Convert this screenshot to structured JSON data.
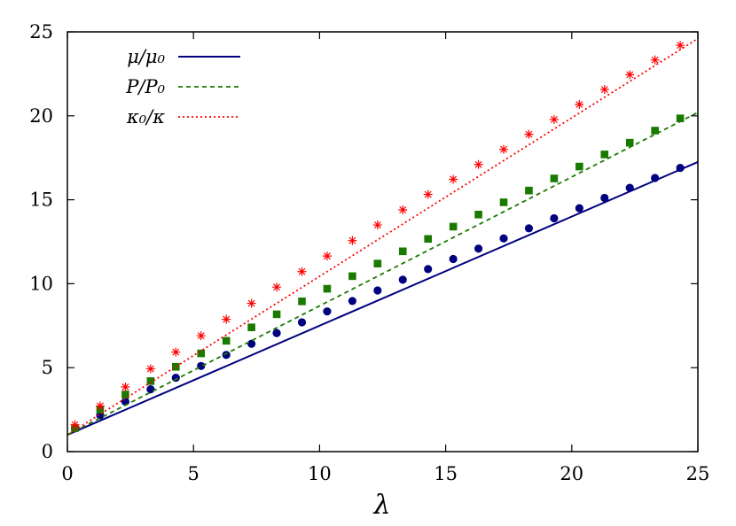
{
  "chart_data": {
    "type": "line",
    "xlabel": "λ",
    "ylabel": "",
    "xlim": [
      0,
      25
    ],
    "ylim": [
      0,
      25
    ],
    "xticks": [
      0,
      5,
      10,
      15,
      20,
      25
    ],
    "yticks": [
      0,
      5,
      10,
      15,
      20,
      25
    ],
    "grid": false,
    "legend_position": "top-left",
    "series": [
      {
        "name": "μ/μ₀",
        "color": "#000080",
        "line_style": "solid",
        "marker": "circle",
        "line": [
          [
            0,
            1.0
          ],
          [
            25,
            17.25
          ]
        ],
        "points": [
          [
            0.3,
            1.39
          ],
          [
            1.3,
            2.16
          ],
          [
            2.3,
            2.98
          ],
          [
            3.3,
            3.71
          ],
          [
            4.3,
            4.4
          ],
          [
            5.3,
            5.1
          ],
          [
            6.3,
            5.76
          ],
          [
            7.3,
            6.42
          ],
          [
            8.3,
            7.06
          ],
          [
            9.3,
            7.7
          ],
          [
            10.3,
            8.35
          ],
          [
            11.3,
            8.97
          ],
          [
            12.3,
            9.6
          ],
          [
            13.3,
            10.24
          ],
          [
            14.3,
            10.87
          ],
          [
            15.3,
            11.47
          ],
          [
            16.3,
            12.09
          ],
          [
            17.3,
            12.7
          ],
          [
            18.3,
            13.3
          ],
          [
            19.3,
            13.9
          ],
          [
            20.3,
            14.5
          ],
          [
            21.3,
            15.11
          ],
          [
            22.3,
            15.71
          ],
          [
            23.3,
            16.3
          ],
          [
            24.3,
            16.9
          ]
        ]
      },
      {
        "name": "P/P₀",
        "color": "#1a7a00",
        "line_style": "dashed",
        "marker": "square",
        "line": [
          [
            0,
            1.0
          ],
          [
            25,
            20.2
          ]
        ],
        "points": [
          [
            0.3,
            1.4
          ],
          [
            1.3,
            2.5
          ],
          [
            2.3,
            3.4
          ],
          [
            3.3,
            4.2
          ],
          [
            4.3,
            5.05
          ],
          [
            5.3,
            5.85
          ],
          [
            6.3,
            6.6
          ],
          [
            7.3,
            7.4
          ],
          [
            8.3,
            8.18
          ],
          [
            9.3,
            8.95
          ],
          [
            10.3,
            9.7
          ],
          [
            11.3,
            10.45
          ],
          [
            12.3,
            11.2
          ],
          [
            13.3,
            11.93
          ],
          [
            14.3,
            12.67
          ],
          [
            15.3,
            13.4
          ],
          [
            16.3,
            14.12
          ],
          [
            17.3,
            14.85
          ],
          [
            18.3,
            15.55
          ],
          [
            19.3,
            16.27
          ],
          [
            20.3,
            16.98
          ],
          [
            21.3,
            17.7
          ],
          [
            22.3,
            18.4
          ],
          [
            23.3,
            19.12
          ],
          [
            24.3,
            19.85
          ]
        ]
      },
      {
        "name": "κ₀/κ",
        "color": "#ff0000",
        "line_style": "dotted",
        "marker": "star",
        "line": [
          [
            0,
            1.0
          ],
          [
            25,
            24.6
          ]
        ],
        "points": [
          [
            0.3,
            1.6
          ],
          [
            1.3,
            2.72
          ],
          [
            2.3,
            3.85
          ],
          [
            3.3,
            4.93
          ],
          [
            4.3,
            5.93
          ],
          [
            5.3,
            6.9
          ],
          [
            6.3,
            7.88
          ],
          [
            7.3,
            8.83
          ],
          [
            8.3,
            9.8
          ],
          [
            9.3,
            10.72
          ],
          [
            10.3,
            11.65
          ],
          [
            11.3,
            12.57
          ],
          [
            12.3,
            13.5
          ],
          [
            13.3,
            14.4
          ],
          [
            14.3,
            15.32
          ],
          [
            15.3,
            16.22
          ],
          [
            16.3,
            17.1
          ],
          [
            17.3,
            18.0
          ],
          [
            18.3,
            18.9
          ],
          [
            19.3,
            19.78
          ],
          [
            20.3,
            20.68
          ],
          [
            21.3,
            21.57
          ],
          [
            22.3,
            22.45
          ],
          [
            23.3,
            23.33
          ],
          [
            24.3,
            24.2
          ]
        ]
      }
    ]
  }
}
